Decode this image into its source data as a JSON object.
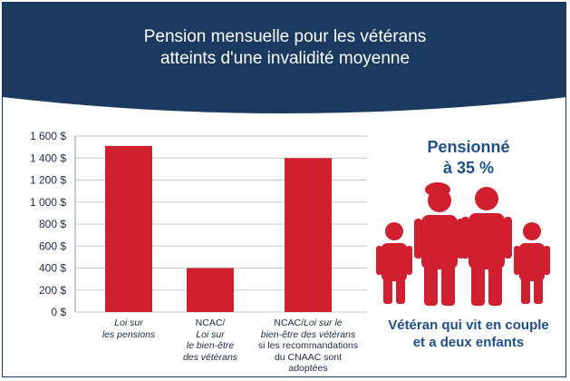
{
  "header": {
    "title_line1": "Pension mensuelle pour les vétérans",
    "title_line2": "atteints d'une invalidité moyenne",
    "background": "#1b3a60"
  },
  "chart_data": {
    "type": "bar",
    "title": "Pension mensuelle pour les vétérans atteints d'une invalidité moyenne",
    "categories": [
      "Loi sur les pensions",
      "NCAC/Loi sur le bien-être des vétérans",
      "NCAC/Loi sur le bien-être des vétérans si les recommandations du CNAAC sont adoptées"
    ],
    "values": [
      1510,
      400,
      1400
    ],
    "ylim": [
      0,
      1600
    ],
    "yticks": [
      0,
      200,
      400,
      600,
      800,
      1000,
      1200,
      1400,
      1600
    ],
    "ytick_labels": [
      "0 $",
      "200 $",
      "400 $",
      "600 $",
      "800 $",
      "1 000 $",
      "1 200 $",
      "1 400 $",
      "1 600 $"
    ],
    "bar_color": "#d01f2f",
    "grid": true
  },
  "category_labels": [
    {
      "lines": [
        {
          "text": "Loi sur",
          "italic": true
        },
        {
          "text": "les pensions",
          "italic": true
        }
      ]
    },
    {
      "lines": [
        {
          "text": "NCAC/",
          "italic": false
        },
        {
          "text": "Loi sur",
          "italic": true
        },
        {
          "text": "le bien-être",
          "italic": true
        },
        {
          "text": "des vétérans",
          "italic": true
        }
      ]
    },
    {
      "lines": [
        {
          "text": "NCAC/Loi sur le",
          "italic": "mixed",
          "plain": "NCAC/",
          "ital": "Loi sur le"
        },
        {
          "text": "bien-être des vétérans",
          "italic": true
        },
        {
          "text": "si les recommandations",
          "italic": false
        },
        {
          "text": "du CNAAC sont adoptées",
          "italic": false
        }
      ]
    }
  ],
  "sidebar": {
    "title_line1": "Pensionné",
    "title_line2": "à 35 %",
    "caption_line1": "Vétéran qui vit en couple",
    "caption_line2": "et a deux enfants",
    "accent": "#1f4f86",
    "figure_color": "#d01f2f",
    "figures": [
      "child-figure",
      "veteran-figure",
      "adult-figure",
      "child-figure"
    ]
  }
}
